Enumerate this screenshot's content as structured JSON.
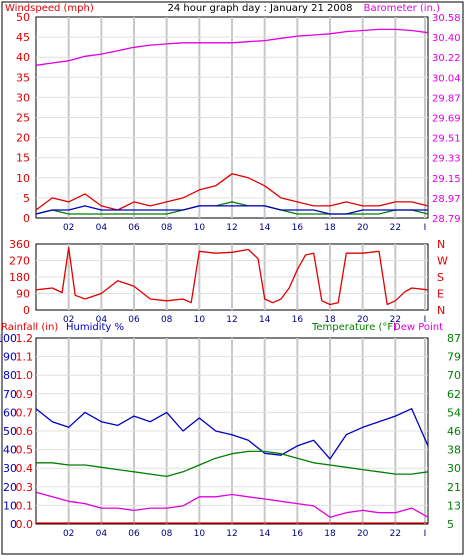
{
  "title": "24 hour graph day : January 21 2008",
  "chart_data": [
    {
      "type": "line",
      "panel": "wind-barometer",
      "title": "24 hour graph day : January 21 2008",
      "ylabel_left": "Windspeed (mph)",
      "ylabel_right": "Barometer (in.)",
      "x_ticks": [
        "02",
        "04",
        "06",
        "08",
        "10",
        "12",
        "14",
        "16",
        "18",
        "20",
        "22",
        "I"
      ],
      "y_left_ticks": [
        0,
        5,
        10,
        15,
        20,
        25,
        30,
        35,
        40,
        45,
        50
      ],
      "ylim_left": [
        0,
        50
      ],
      "y_right_ticks": [
        "28.79",
        "28.97",
        "29.15",
        "29.33",
        "29.51",
        "29.69",
        "29.87",
        "30.04",
        "30.22",
        "30.40",
        "30.58"
      ],
      "ylim_right": [
        28.79,
        30.58
      ],
      "grid": true,
      "series": [
        {
          "axis": "right",
          "color": "#e000e0",
          "points": [
            [
              0,
              30.15
            ],
            [
              1,
              30.17
            ],
            [
              2,
              30.19
            ],
            [
              3,
              30.23
            ],
            [
              4,
              30.25
            ],
            [
              5,
              30.28
            ],
            [
              6,
              30.31
            ],
            [
              7,
              30.33
            ],
            [
              8,
              30.34
            ],
            [
              9,
              30.35
            ],
            [
              10,
              30.35
            ],
            [
              11,
              30.35
            ],
            [
              12,
              30.35
            ],
            [
              13,
              30.36
            ],
            [
              14,
              30.37
            ],
            [
              15,
              30.39
            ],
            [
              16,
              30.41
            ],
            [
              17,
              30.42
            ],
            [
              18,
              30.43
            ],
            [
              19,
              30.45
            ],
            [
              20,
              30.46
            ],
            [
              21,
              30.47
            ],
            [
              22,
              30.47
            ],
            [
              23,
              30.46
            ],
            [
              24,
              30.44
            ]
          ]
        },
        {
          "axis": "left",
          "color": "#e00000",
          "points": [
            [
              0,
              2
            ],
            [
              1,
              5
            ],
            [
              2,
              4
            ],
            [
              3,
              6
            ],
            [
              4,
              3
            ],
            [
              5,
              2
            ],
            [
              6,
              4
            ],
            [
              7,
              3
            ],
            [
              8,
              4
            ],
            [
              9,
              5
            ],
            [
              10,
              7
            ],
            [
              11,
              8
            ],
            [
              12,
              11
            ],
            [
              13,
              10
            ],
            [
              14,
              8
            ],
            [
              15,
              5
            ],
            [
              16,
              4
            ],
            [
              17,
              3
            ],
            [
              18,
              3
            ],
            [
              19,
              4
            ],
            [
              20,
              3
            ],
            [
              21,
              3
            ],
            [
              22,
              4
            ],
            [
              23,
              4
            ],
            [
              24,
              3
            ]
          ]
        },
        {
          "axis": "left",
          "color": "#008000",
          "points": [
            [
              0,
              1
            ],
            [
              1,
              2
            ],
            [
              2,
              1
            ],
            [
              3,
              1
            ],
            [
              4,
              1
            ],
            [
              5,
              1
            ],
            [
              6,
              1
            ],
            [
              7,
              1
            ],
            [
              8,
              1
            ],
            [
              9,
              2
            ],
            [
              10,
              3
            ],
            [
              11,
              3
            ],
            [
              12,
              4
            ],
            [
              13,
              3
            ],
            [
              14,
              3
            ],
            [
              15,
              2
            ],
            [
              16,
              1
            ],
            [
              17,
              1
            ],
            [
              18,
              1
            ],
            [
              19,
              1
            ],
            [
              20,
              1
            ],
            [
              21,
              1
            ],
            [
              22,
              2
            ],
            [
              23,
              2
            ],
            [
              24,
              1
            ]
          ]
        },
        {
          "axis": "left",
          "color": "#0000c0",
          "points": [
            [
              0,
              1
            ],
            [
              1,
              2
            ],
            [
              2,
              2
            ],
            [
              3,
              3
            ],
            [
              4,
              2
            ],
            [
              5,
              2
            ],
            [
              6,
              2
            ],
            [
              7,
              2
            ],
            [
              8,
              2
            ],
            [
              9,
              2
            ],
            [
              10,
              3
            ],
            [
              11,
              3
            ],
            [
              12,
              3
            ],
            [
              13,
              3
            ],
            [
              14,
              3
            ],
            [
              15,
              2
            ],
            [
              16,
              2
            ],
            [
              17,
              2
            ],
            [
              18,
              1
            ],
            [
              19,
              1
            ],
            [
              20,
              2
            ],
            [
              21,
              2
            ],
            [
              22,
              2
            ],
            [
              23,
              2
            ],
            [
              24,
              2
            ]
          ]
        }
      ]
    },
    {
      "type": "line",
      "panel": "wind-direction",
      "x_ticks": [
        "02",
        "04",
        "06",
        "08",
        "10",
        "12",
        "14",
        "16",
        "18",
        "20",
        "22",
        "I"
      ],
      "y_left_ticks": [
        0,
        90,
        180,
        270,
        360
      ],
      "ylim_left": [
        0,
        360
      ],
      "y_right_ticks": [
        "N",
        "W",
        "S",
        "E",
        "N"
      ],
      "grid": true,
      "series": [
        {
          "axis": "left",
          "color": "#e00000",
          "points": [
            [
              0,
              110
            ],
            [
              1,
              120
            ],
            [
              1.6,
              95
            ],
            [
              2,
              340
            ],
            [
              2.4,
              80
            ],
            [
              3,
              60
            ],
            [
              4,
              90
            ],
            [
              5,
              160
            ],
            [
              6,
              130
            ],
            [
              7,
              60
            ],
            [
              8,
              50
            ],
            [
              9,
              60
            ],
            [
              9.5,
              40
            ],
            [
              10,
              320
            ],
            [
              11,
              310
            ],
            [
              12,
              315
            ],
            [
              13,
              330
            ],
            [
              13.6,
              280
            ],
            [
              14,
              60
            ],
            [
              14.5,
              40
            ],
            [
              15,
              60
            ],
            [
              15.5,
              120
            ],
            [
              16,
              220
            ],
            [
              16.5,
              300
            ],
            [
              17,
              310
            ],
            [
              17.5,
              50
            ],
            [
              18,
              30
            ],
            [
              18.5,
              40
            ],
            [
              19,
              310
            ],
            [
              20,
              310
            ],
            [
              21,
              320
            ],
            [
              21.5,
              30
            ],
            [
              22,
              50
            ],
            [
              22.6,
              100
            ],
            [
              23,
              120
            ],
            [
              24,
              110
            ]
          ]
        }
      ]
    },
    {
      "type": "line",
      "panel": "rain-humidity-temperature",
      "ylabel_left_1": "Rainfall (in)",
      "ylabel_left_2": "Humidity %",
      "ylabel_right_1": "Temperature (°F)",
      "ylabel_right_2": "Dew Point",
      "x_ticks": [
        "02",
        "04",
        "06",
        "08",
        "10",
        "12",
        "14",
        "16",
        "18",
        "20",
        "22",
        "I"
      ],
      "y_left_ticks_1": [
        0.0,
        0.1,
        0.3,
        0.4,
        0.5,
        0.6,
        0.7,
        0.9,
        1.0,
        1.1,
        1.2
      ],
      "y_left_ticks_2": [
        0,
        10,
        20,
        30,
        40,
        50,
        60,
        70,
        80,
        90,
        100
      ],
      "ylim_left": [
        0,
        100
      ],
      "y_right_ticks": [
        5,
        13,
        21,
        30,
        38,
        46,
        54,
        62,
        70,
        79,
        87
      ],
      "ylim_right": [
        5,
        87
      ],
      "grid": true,
      "series": [
        {
          "axis": "left",
          "color": "#0000c0",
          "points": [
            [
              0,
              62
            ],
            [
              1,
              55
            ],
            [
              2,
              52
            ],
            [
              3,
              60
            ],
            [
              4,
              55
            ],
            [
              5,
              53
            ],
            [
              6,
              58
            ],
            [
              7,
              55
            ],
            [
              8,
              60
            ],
            [
              9,
              50
            ],
            [
              10,
              57
            ],
            [
              11,
              50
            ],
            [
              12,
              48
            ],
            [
              13,
              45
            ],
            [
              14,
              38
            ],
            [
              15,
              37
            ],
            [
              16,
              42
            ],
            [
              17,
              45
            ],
            [
              18,
              35
            ],
            [
              19,
              48
            ],
            [
              20,
              52
            ],
            [
              21,
              55
            ],
            [
              22,
              58
            ],
            [
              23,
              62
            ],
            [
              24,
              42
            ]
          ]
        },
        {
          "axis": "right",
          "color": "#008000",
          "points": [
            [
              0,
              32
            ],
            [
              1,
              32
            ],
            [
              2,
              31
            ],
            [
              3,
              31
            ],
            [
              4,
              30
            ],
            [
              5,
              29
            ],
            [
              6,
              28
            ],
            [
              7,
              27
            ],
            [
              8,
              26
            ],
            [
              9,
              28
            ],
            [
              10,
              31
            ],
            [
              11,
              34
            ],
            [
              12,
              36
            ],
            [
              13,
              37
            ],
            [
              14,
              37
            ],
            [
              15,
              36
            ],
            [
              16,
              34
            ],
            [
              17,
              32
            ],
            [
              18,
              31
            ],
            [
              19,
              30
            ],
            [
              20,
              29
            ],
            [
              21,
              28
            ],
            [
              22,
              27
            ],
            [
              23,
              27
            ],
            [
              24,
              28
            ]
          ]
        },
        {
          "axis": "right",
          "color": "#e000e0",
          "points": [
            [
              0,
              19
            ],
            [
              1,
              17
            ],
            [
              2,
              15
            ],
            [
              3,
              14
            ],
            [
              4,
              12
            ],
            [
              5,
              12
            ],
            [
              6,
              11
            ],
            [
              7,
              12
            ],
            [
              8,
              12
            ],
            [
              9,
              13
            ],
            [
              10,
              17
            ],
            [
              11,
              17
            ],
            [
              12,
              18
            ],
            [
              13,
              17
            ],
            [
              14,
              16
            ],
            [
              15,
              15
            ],
            [
              16,
              14
            ],
            [
              17,
              13
            ],
            [
              18,
              8
            ],
            [
              19,
              10
            ],
            [
              20,
              11
            ],
            [
              21,
              10
            ],
            [
              22,
              10
            ],
            [
              23,
              12
            ],
            [
              24,
              8
            ]
          ]
        },
        {
          "axis": "left",
          "color": "#e00000",
          "points": [
            [
              0,
              0
            ],
            [
              24,
              0
            ]
          ]
        }
      ]
    }
  ]
}
